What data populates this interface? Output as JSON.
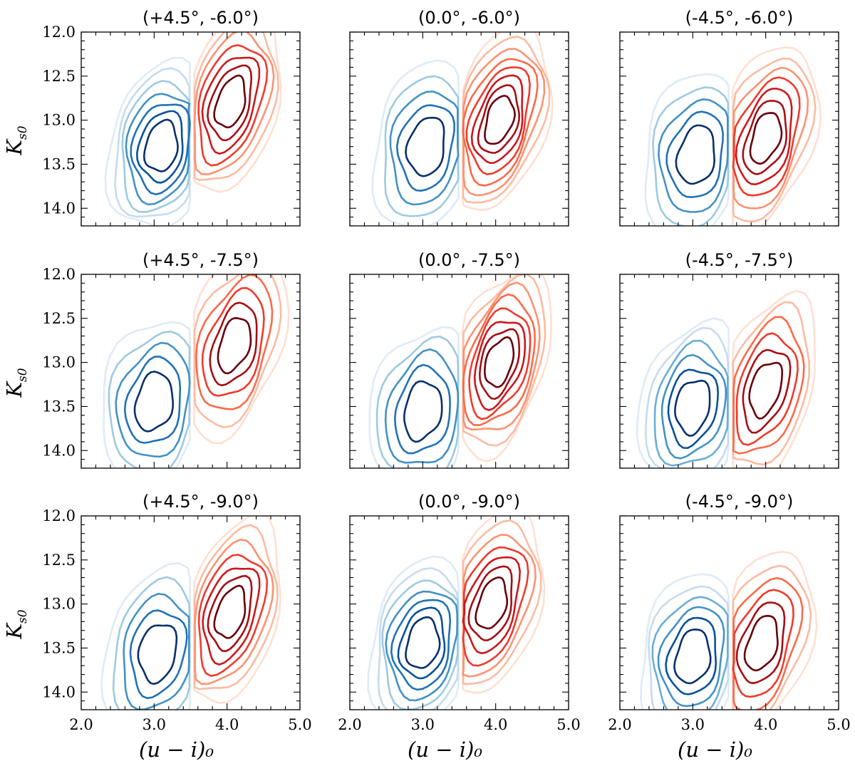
{
  "chart_data": {
    "type": "contour",
    "description_units": "contour centres in data units",
    "xlabel": "(u − i)₀",
    "ylabel": "K",
    "ylabel_subscript": "s0",
    "xlim": [
      2.0,
      5.0
    ],
    "ylim": [
      14.2,
      12.0
    ],
    "xticks": [
      "2.0",
      "3.0",
      "4.0",
      "5.0"
    ],
    "yticks": [
      "12.0",
      "12.5",
      "13.0",
      "13.5",
      "14.0"
    ],
    "colors": {
      "blue": [
        "#deebf7",
        "#c6dbef",
        "#9ecae1",
        "#6baed6",
        "#4292c6",
        "#2171b5",
        "#08519c",
        "#08306b"
      ],
      "red": [
        "#fee0d2",
        "#fcbba1",
        "#fc9272",
        "#fb6a4a",
        "#ef3b2c",
        "#cb181d",
        "#a50f15",
        "#67000d"
      ]
    },
    "panels": [
      {
        "title": "(+4.5°, -6.0°)",
        "blue": {
          "cx": 3.1,
          "cy": 13.3,
          "levels": 7
        },
        "red": {
          "cx": 4.05,
          "cy": 12.8,
          "levels": 7
        }
      },
      {
        "title": "(0.0°, -6.0°)",
        "blue": {
          "cx": 3.05,
          "cy": 13.3,
          "levels": 5
        },
        "red": {
          "cx": 4.05,
          "cy": 13.0,
          "levels": 8
        }
      },
      {
        "title": "(-4.5°, -6.0°)",
        "blue": {
          "cx": 3.05,
          "cy": 13.4,
          "levels": 5
        },
        "red": {
          "cx": 4.0,
          "cy": 13.2,
          "levels": 7
        }
      },
      {
        "title": "(+4.5°, -7.5°)",
        "blue": {
          "cx": 3.0,
          "cy": 13.45,
          "levels": 5
        },
        "red": {
          "cx": 4.1,
          "cy": 12.8,
          "levels": 6
        }
      },
      {
        "title": "(0.0°, -7.5°)",
        "blue": {
          "cx": 3.0,
          "cy": 13.55,
          "levels": 5
        },
        "red": {
          "cx": 4.05,
          "cy": 13.0,
          "levels": 8
        }
      },
      {
        "title": "(-4.5°, -7.5°)",
        "blue": {
          "cx": 3.0,
          "cy": 13.5,
          "levels": 6
        },
        "red": {
          "cx": 4.0,
          "cy": 13.3,
          "levels": 6
        }
      },
      {
        "title": "(+4.5°, -9.0°)",
        "blue": {
          "cx": 3.05,
          "cy": 13.55,
          "levels": 5
        },
        "red": {
          "cx": 4.05,
          "cy": 13.1,
          "levels": 7
        }
      },
      {
        "title": "(0.0°, -9.0°)",
        "blue": {
          "cx": 3.0,
          "cy": 13.45,
          "levels": 7
        },
        "red": {
          "cx": 3.95,
          "cy": 13.0,
          "levels": 7
        }
      },
      {
        "title": "(-4.5°, -9.0°)",
        "blue": {
          "cx": 3.0,
          "cy": 13.6,
          "levels": 6
        },
        "red": {
          "cx": 3.95,
          "cy": 13.45,
          "levels": 6
        }
      }
    ]
  }
}
